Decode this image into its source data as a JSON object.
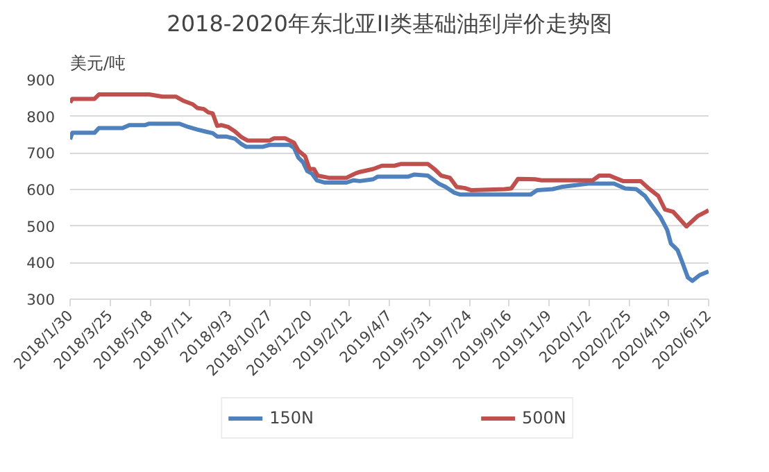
{
  "chart_data": {
    "type": "line",
    "title": "2018-2020年东北亚II类基础油到岸价走势图",
    "ylabel": "美元/吨",
    "xlim": [
      "2018-01-30",
      "2020-06-12"
    ],
    "ylim": [
      300,
      900
    ],
    "yticks": [
      300,
      400,
      500,
      600,
      700,
      800,
      900
    ],
    "xticks": [
      {
        "value": "2018-01-30",
        "label": "2018/1/30"
      },
      {
        "value": "2018-03-25",
        "label": "2018/3/25"
      },
      {
        "value": "2018-05-18",
        "label": "2018/5/18"
      },
      {
        "value": "2018-07-11",
        "label": "2018/7/11"
      },
      {
        "value": "2018-09-03",
        "label": "2018/9/3"
      },
      {
        "value": "2018-10-27",
        "label": "2018/10/27"
      },
      {
        "value": "2018-12-20",
        "label": "2018/12/20"
      },
      {
        "value": "2019-02-12",
        "label": "2019/2/12"
      },
      {
        "value": "2019-04-07",
        "label": "2019/4/7"
      },
      {
        "value": "2019-05-31",
        "label": "2019/5/31"
      },
      {
        "value": "2019-07-24",
        "label": "2019/7/24"
      },
      {
        "value": "2019-09-16",
        "label": "2019/9/16"
      },
      {
        "value": "2019-11-09",
        "label": "2019/11/9"
      },
      {
        "value": "2020-01-02",
        "label": "2020/1/2"
      },
      {
        "value": "2020-02-25",
        "label": "2020/2/25"
      },
      {
        "value": "2020-04-19",
        "label": "2020/4/19"
      },
      {
        "value": "2020-06-12",
        "label": "2020/6/12"
      }
    ],
    "grid": "y",
    "legend": "bottom",
    "marker": "none",
    "line_style": "solid",
    "series": [
      {
        "name": "150N",
        "color": "#4f81bd",
        "x": [
          "2018-01-30",
          "2018-02-02",
          "2018-03-04",
          "2018-03-10",
          "2018-04-11",
          "2018-04-20",
          "2018-05-11",
          "2018-05-17",
          "2018-06-27",
          "2018-07-09",
          "2018-07-21",
          "2018-08-02",
          "2018-08-11",
          "2018-08-17",
          "2018-08-29",
          "2018-09-10",
          "2018-09-19",
          "2018-09-25",
          "2018-10-18",
          "2018-10-27",
          "2018-11-23",
          "2018-11-29",
          "2018-12-05",
          "2018-12-11",
          "2018-12-17",
          "2018-12-23",
          "2018-12-30",
          "2019-01-09",
          "2019-02-08",
          "2019-02-17",
          "2019-02-26",
          "2019-03-16",
          "2019-03-22",
          "2019-05-02",
          "2019-05-11",
          "2019-05-29",
          "2019-06-13",
          "2019-06-22",
          "2019-07-04",
          "2019-07-12",
          "2019-10-15",
          "2019-10-24",
          "2019-11-14",
          "2019-11-26",
          "2020-01-01",
          "2020-02-05",
          "2020-02-20",
          "2020-03-06",
          "2020-03-18",
          "2020-03-27",
          "2020-04-08",
          "2020-04-17",
          "2020-04-22",
          "2020-05-01",
          "2020-05-07",
          "2020-05-15",
          "2020-05-21",
          "2020-05-31",
          "2020-06-12"
        ],
        "values": [
          737,
          755,
          755,
          768,
          768,
          776,
          776,
          780,
          780,
          771,
          764,
          758,
          754,
          745,
          745,
          739,
          724,
          717,
          717,
          722,
          722,
          714,
          687,
          675,
          650,
          644,
          625,
          619,
          619,
          625,
          623,
          628,
          635,
          635,
          641,
          638,
          616,
          607,
          591,
          586,
          586,
          598,
          601,
          607,
          616,
          616,
          603,
          601,
          582,
          557,
          524,
          489,
          452,
          434,
          403,
          359,
          350,
          366,
          376
        ]
      },
      {
        "name": "500N",
        "color": "#c0504d",
        "x": [
          "2018-01-30",
          "2018-02-02",
          "2018-03-04",
          "2018-03-10",
          "2018-05-17",
          "2018-06-04",
          "2018-06-22",
          "2018-07-03",
          "2018-07-15",
          "2018-07-21",
          "2018-07-30",
          "2018-08-05",
          "2018-08-11",
          "2018-08-17",
          "2018-08-23",
          "2018-09-01",
          "2018-09-10",
          "2018-09-19",
          "2018-09-27",
          "2018-10-27",
          "2018-11-02",
          "2018-11-17",
          "2018-11-29",
          "2018-12-05",
          "2018-12-14",
          "2018-12-20",
          "2018-12-26",
          "2018-12-31",
          "2019-01-15",
          "2019-02-08",
          "2019-02-20",
          "2019-02-26",
          "2019-03-16",
          "2019-03-28",
          "2019-04-14",
          "2019-04-23",
          "2019-05-29",
          "2019-06-07",
          "2019-06-16",
          "2019-06-28",
          "2019-07-07",
          "2019-07-18",
          "2019-07-27",
          "2019-09-10",
          "2019-09-19",
          "2019-09-28",
          "2019-10-21",
          "2019-10-30",
          "2020-01-07",
          "2020-01-16",
          "2020-01-30",
          "2020-02-17",
          "2020-03-12",
          "2020-03-24",
          "2020-04-05",
          "2020-04-14",
          "2020-04-25",
          "2020-05-13",
          "2020-05-28",
          "2020-06-12"
        ],
        "values": [
          838,
          848,
          848,
          860,
          860,
          854,
          854,
          842,
          833,
          823,
          820,
          811,
          808,
          774,
          776,
          771,
          759,
          743,
          734,
          734,
          740,
          740,
          728,
          706,
          691,
          656,
          656,
          638,
          632,
          632,
          644,
          648,
          656,
          665,
          665,
          670,
          670,
          656,
          638,
          632,
          607,
          604,
          598,
          601,
          603,
          629,
          628,
          625,
          625,
          638,
          638,
          623,
          623,
          601,
          582,
          545,
          539,
          499,
          527,
          543
        ]
      }
    ]
  }
}
